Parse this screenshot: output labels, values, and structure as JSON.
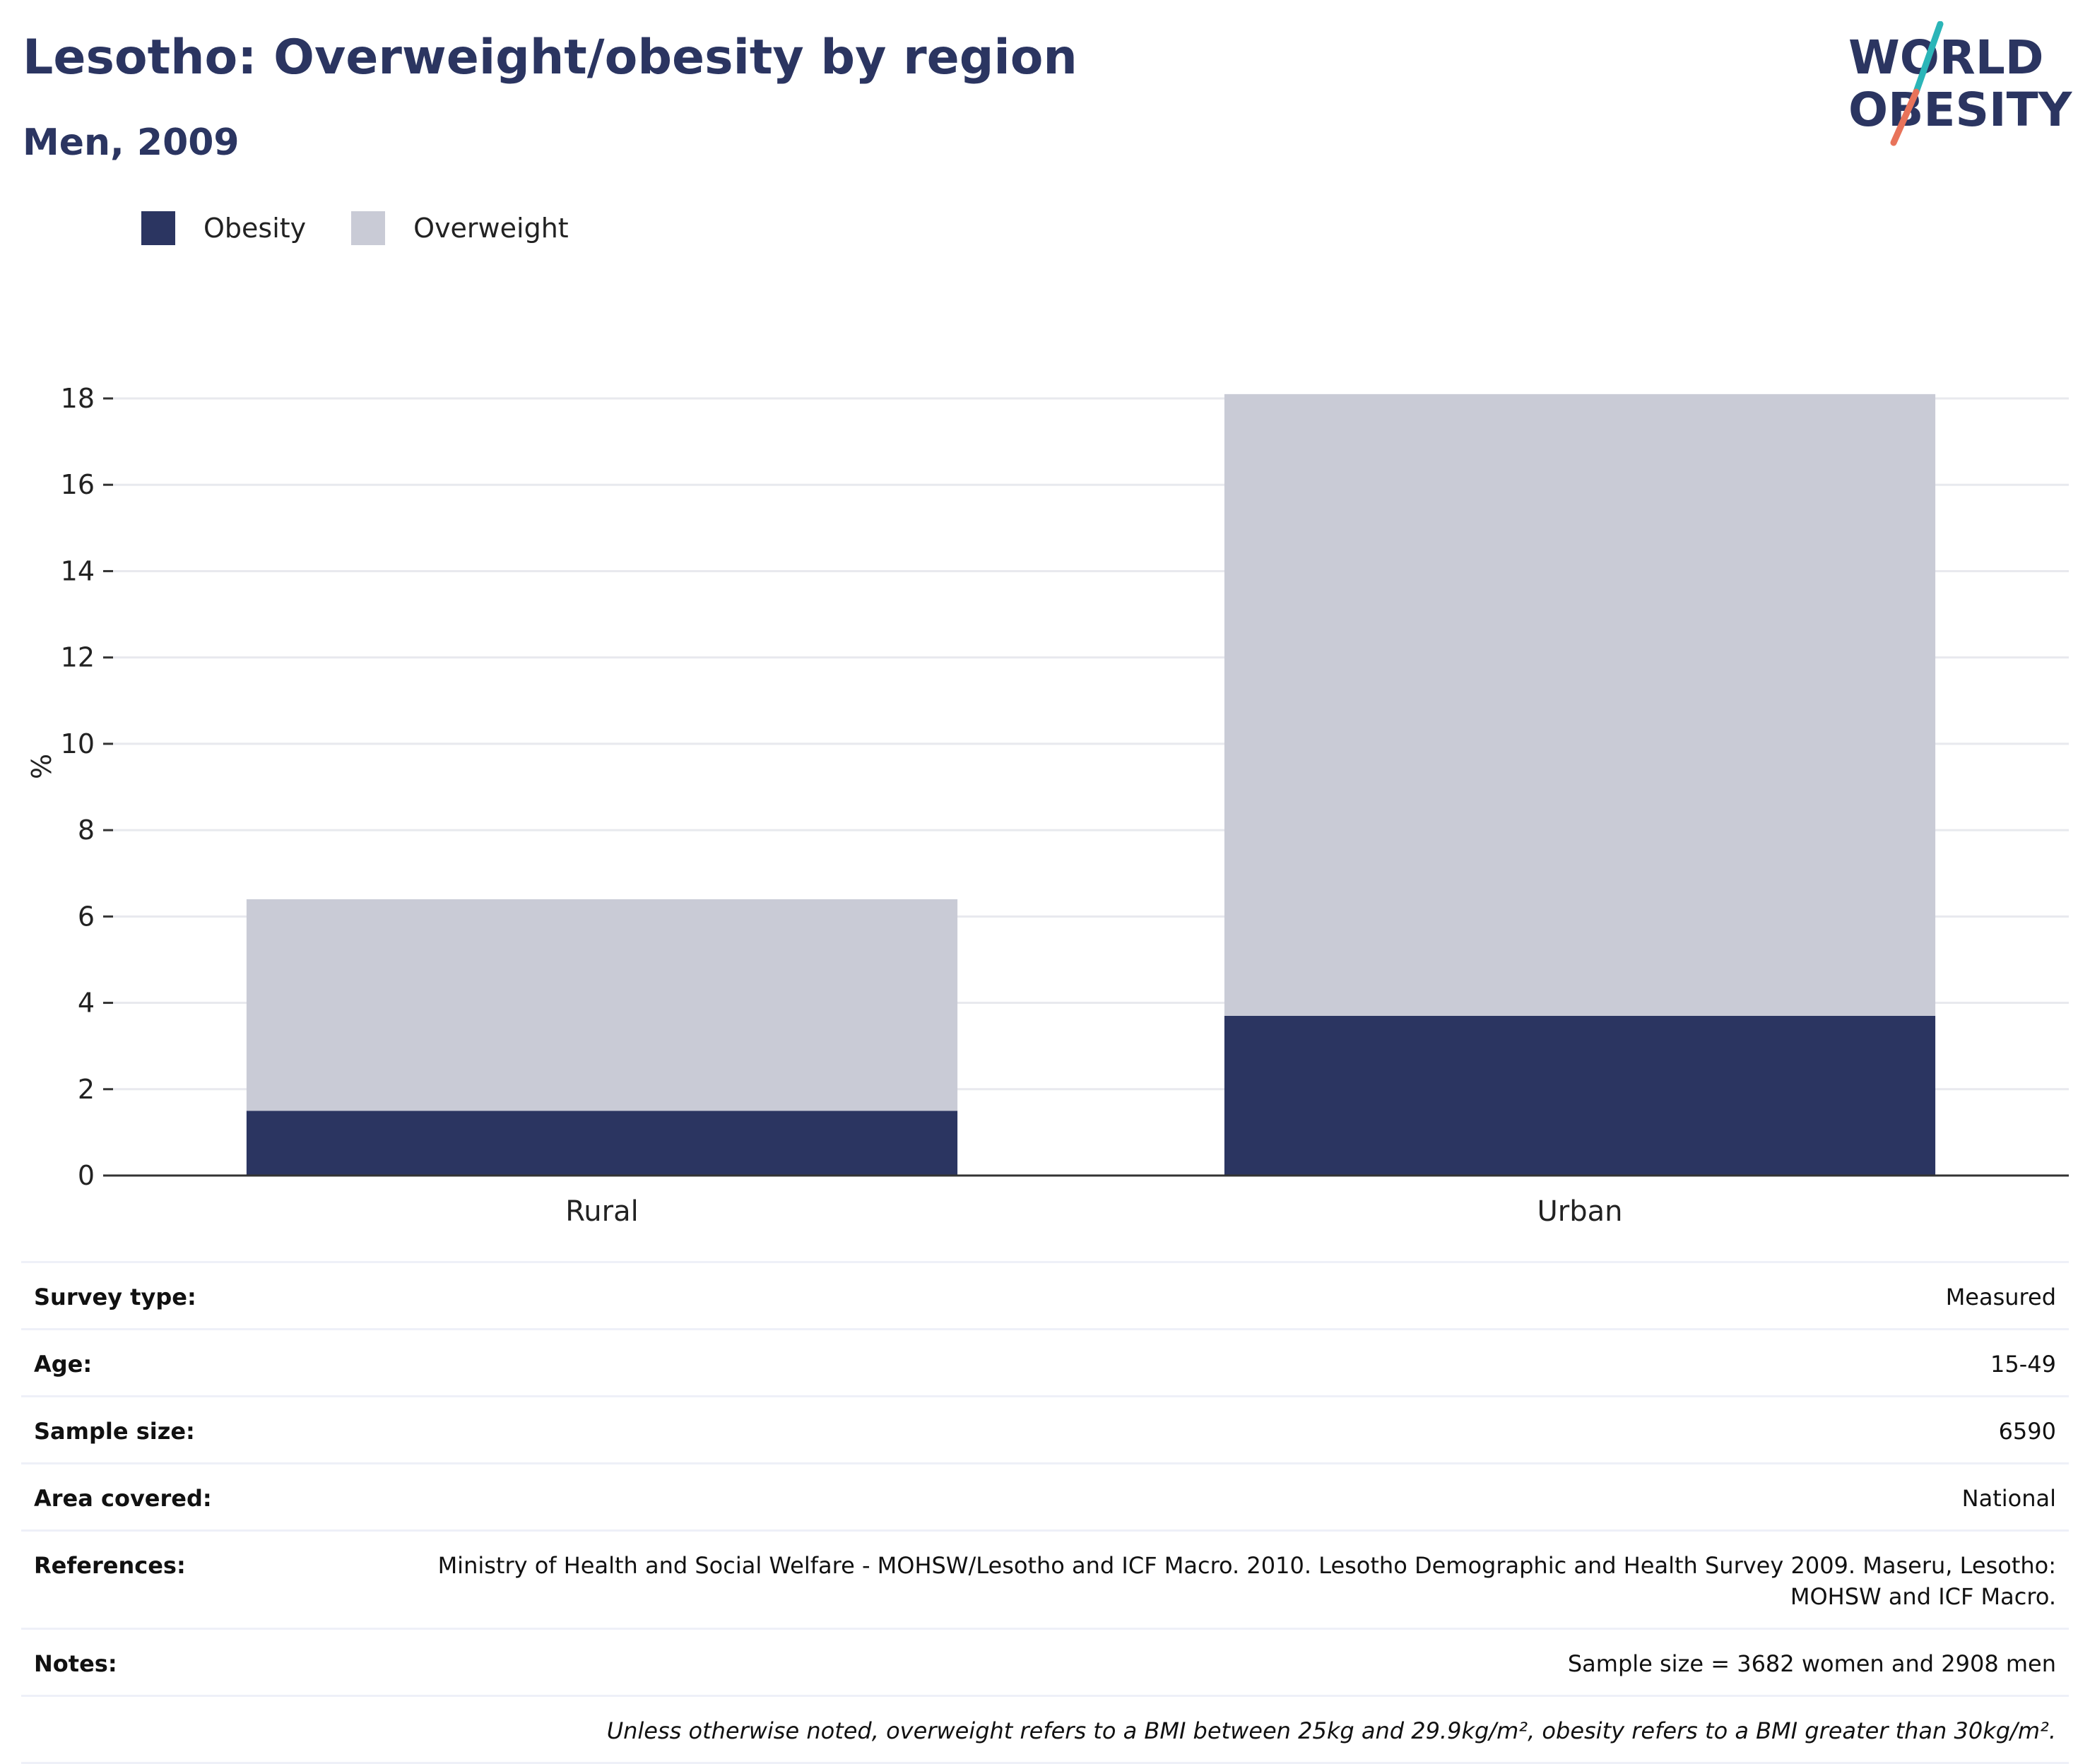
{
  "header": {
    "title": "Lesotho: Overweight/obesity by region",
    "subtitle": "Men, 2009"
  },
  "logo": {
    "line1": "WORLD",
    "line2": "OBESITY",
    "colors": {
      "text": "#2b3561",
      "slash_top": "#2bb5b8",
      "slash_bottom": "#e8735a"
    }
  },
  "colors": {
    "obesity": "#2b3561",
    "overweight": "#c9cbd6",
    "grid": "#e8e9ee",
    "axis": "#333333"
  },
  "chart_data": {
    "type": "bar",
    "stacked": true,
    "categories": [
      "Rural",
      "Urban"
    ],
    "series": [
      {
        "name": "Obesity",
        "values": [
          1.5,
          3.7
        ]
      },
      {
        "name": "Overweight",
        "values": [
          4.9,
          14.4
        ]
      }
    ],
    "ylabel": "%",
    "xlabel": "",
    "ylim": [
      0,
      18
    ],
    "yticks": [
      0,
      2,
      4,
      6,
      8,
      10,
      12,
      14,
      16,
      18
    ],
    "grid": true,
    "legend_position": "top-left"
  },
  "info": {
    "rows": [
      {
        "key": "Survey type:",
        "value": "Measured"
      },
      {
        "key": "Age:",
        "value": "15-49"
      },
      {
        "key": "Sample size:",
        "value": "6590"
      },
      {
        "key": "Area covered:",
        "value": "National"
      },
      {
        "key": "References:",
        "value": "Ministry of Health and Social Welfare - MOHSW/Lesotho and ICF Macro. 2010. Lesotho Demographic and Health Survey 2009. Maseru, Lesotho: MOHSW and ICF Macro."
      },
      {
        "key": "Notes:",
        "value": "Sample size = 3682 women and 2908 men"
      }
    ],
    "footnote": "Unless otherwise noted, overweight refers to a BMI between 25kg and 29.9kg/m², obesity refers to a BMI greater than 30kg/m²."
  }
}
